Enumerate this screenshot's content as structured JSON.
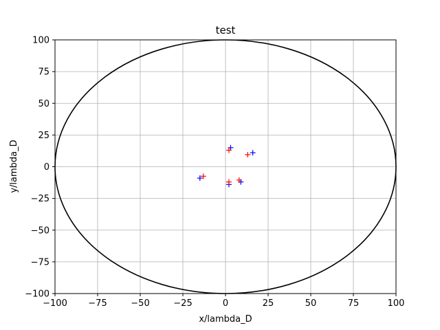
{
  "chart_data": {
    "type": "scatter",
    "title": "test",
    "xlabel": "x/lambda_D",
    "ylabel": "y/lambda_D",
    "xlim": [
      -100,
      100
    ],
    "ylim": [
      -100,
      100
    ],
    "xticks": [
      -100,
      -75,
      -50,
      -25,
      0,
      25,
      50,
      75,
      100
    ],
    "yticks": [
      -100,
      -75,
      -50,
      -25,
      0,
      25,
      50,
      75,
      100
    ],
    "xtick_labels": [
      "−100",
      "−75",
      "−50",
      "−25",
      "0",
      "25",
      "50",
      "75",
      "100"
    ],
    "ytick_labels": [
      "−100",
      "−75",
      "−50",
      "−25",
      "0",
      "25",
      "50",
      "75",
      "100"
    ],
    "grid": true,
    "circle": {
      "center": [
        0,
        0
      ],
      "radius": 100,
      "color": "#000000"
    },
    "series": [
      {
        "color": "#0000ff",
        "marker": "+",
        "points": [
          [
            3,
            15
          ],
          [
            16,
            11
          ],
          [
            -15,
            -9
          ],
          [
            2,
            -14
          ],
          [
            9,
            -12
          ]
        ]
      },
      {
        "color": "#ff0000",
        "marker": "+",
        "points": [
          [
            2,
            13
          ],
          [
            13,
            9.5
          ],
          [
            -13,
            -7.5
          ],
          [
            2,
            -12
          ],
          [
            8,
            -10.5
          ]
        ]
      }
    ]
  }
}
